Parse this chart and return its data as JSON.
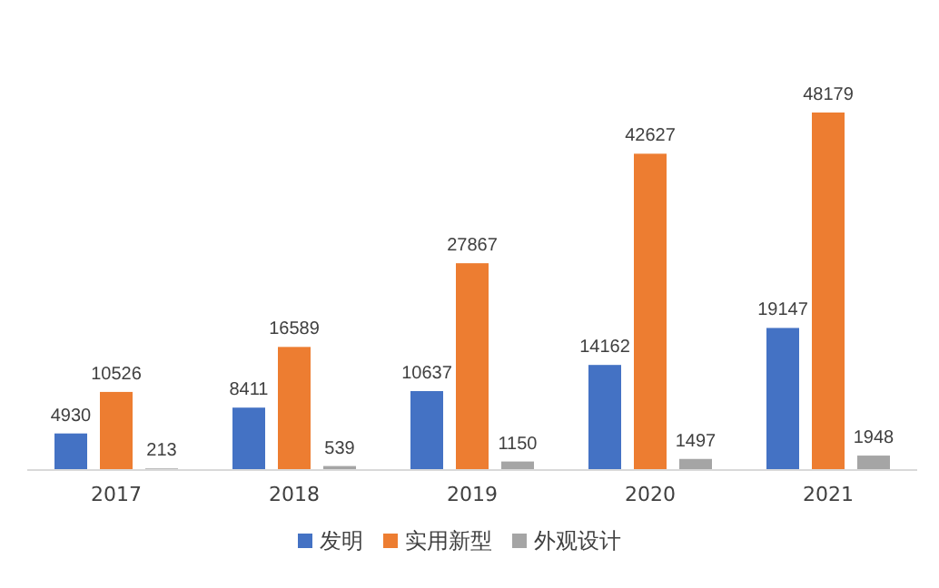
{
  "chart_data": {
    "type": "bar",
    "categories": [
      "2017",
      "2018",
      "2019",
      "2020",
      "2021"
    ],
    "series": [
      {
        "name": "发明",
        "color": "#4472c4",
        "values": [
          4930,
          8411,
          10637,
          14162,
          19147
        ]
      },
      {
        "name": "实用新型",
        "color": "#ed7d31",
        "values": [
          10526,
          16589,
          27867,
          42627,
          48179
        ]
      },
      {
        "name": "外观设计",
        "color": "#a5a5a5",
        "values": [
          213,
          539,
          1150,
          1497,
          1948
        ]
      }
    ],
    "data_labels": true,
    "legend": "bottom",
    "grid": false
  }
}
